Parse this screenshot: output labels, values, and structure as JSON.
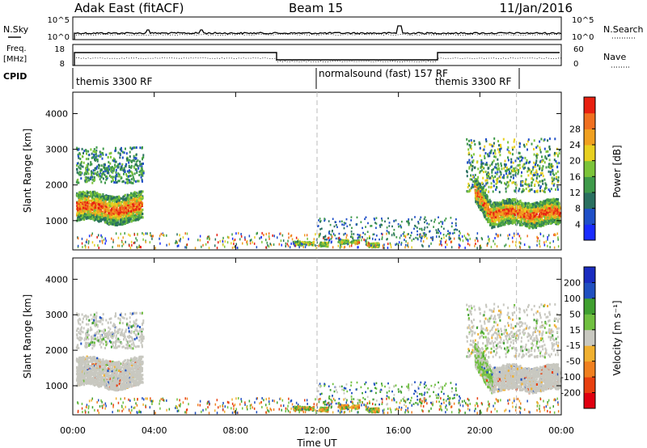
{
  "header": {
    "station": "Adak East (fitACF)",
    "beam": "Beam 15",
    "date": "11/Jan/2016"
  },
  "top_labels": {
    "nsky": "N.Sky",
    "nsearch": "N.Search",
    "freq": "Freq.",
    "freq_unit": "[MHz]",
    "nave": "Nave",
    "cpid": "CPID"
  },
  "top_ticks": {
    "noise_hi": "10^5",
    "noise_lo": "10^0",
    "freq_hi": "18",
    "freq_lo": "8",
    "nave_hi": "60",
    "nave_lo": "0"
  },
  "cpid_segments": [
    {
      "label": "themis 3300 RF"
    },
    {
      "label": "normalsound (fast) 157 RF"
    },
    {
      "label": "themis 3300 RF"
    }
  ],
  "colors": {
    "power": [
      "#1a2cff",
      "#2050c8",
      "#2a7060",
      "#3f9a4a",
      "#7cc43a",
      "#e8d020",
      "#f0a020",
      "#f07020",
      "#e82010"
    ],
    "velocity": [
      "#e00010",
      "#e84010",
      "#f08020",
      "#f0b030",
      "#c8c8c0",
      "#70c040",
      "#40a030",
      "#2050c0",
      "#1a2cc0"
    ],
    "ground": "#c8c8c0"
  },
  "chart_data": [
    {
      "type": "heatmap",
      "name": "power",
      "xlabel": "",
      "ylabel": "Slant Range [km]",
      "ylim": [
        180,
        4600
      ],
      "yticks": [
        1000,
        2000,
        3000,
        4000
      ],
      "cbar_label": "Power [dB]",
      "cbar_ticks": [
        "4",
        "8",
        "12",
        "16",
        "20",
        "24",
        "28"
      ],
      "cbar_range": [
        0,
        32
      ]
    },
    {
      "type": "heatmap",
      "name": "velocity",
      "xlabel": "Time UT",
      "ylabel": "Slant Range [km]",
      "ylim": [
        180,
        4600
      ],
      "yticks": [
        1000,
        2000,
        3000,
        4000
      ],
      "cbar_label": "Velocity [m s⁻¹]",
      "cbar_ticks": [
        "200",
        "100",
        "50",
        "15",
        "-15",
        "-50",
        "-100",
        "-200"
      ],
      "cbar_range": [
        -250,
        250
      ]
    }
  ],
  "x_ticks": [
    "00:00",
    "04:00",
    "08:00",
    "12:00",
    "16:00",
    "20:00",
    "00:00"
  ],
  "x_range_hours": [
    0,
    24
  ],
  "dashed_lines_hours": [
    12,
    21.8
  ]
}
